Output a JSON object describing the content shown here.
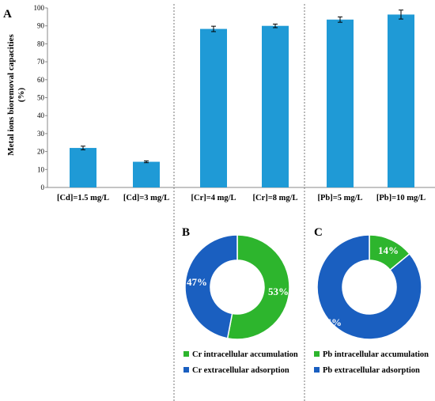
{
  "colors": {
    "bar": "#1f9ad6",
    "green": "#2db52d",
    "blue": "#1a5fc0"
  },
  "chart_data": [
    {
      "type": "bar",
      "panel": "A",
      "ylabel": "Metal ions bioremoval capacities (%)",
      "ylabel_lines": [
        "Metal ions bioremoval capacities",
        "(%)"
      ],
      "ylim": [
        0,
        100
      ],
      "yticks": [
        "0",
        "10",
        "20",
        "30",
        "40",
        "50",
        "60",
        "70",
        "80",
        "90",
        "100"
      ],
      "categories": [
        "[Cd]=1.5 mg/L",
        "[Cd]=3 mg/L",
        "[Cr]=4 mg/L",
        "[Cr]=8 mg/L",
        "[Pb]=5 mg/L",
        "[Pb]=10 mg/L"
      ],
      "values": [
        22,
        14.3,
        88.3,
        90,
        93.5,
        96.3
      ],
      "errors": [
        1.0,
        0.5,
        1.5,
        1.0,
        1.5,
        2.5
      ],
      "grid": false
    },
    {
      "type": "pie",
      "panel": "B",
      "labels": [
        "Cr intracellular accumulation",
        "Cr extracellular adsorption"
      ],
      "values": [
        53,
        47
      ],
      "value_labels": [
        "53%",
        "47%"
      ],
      "legend": "bottom"
    },
    {
      "type": "pie",
      "panel": "C",
      "labels": [
        "Pb intracellular accumulation",
        "Pb extracellular adsorption"
      ],
      "values": [
        14,
        86
      ],
      "value_labels": [
        "14%",
        "86%"
      ],
      "legend": "bottom"
    }
  ]
}
